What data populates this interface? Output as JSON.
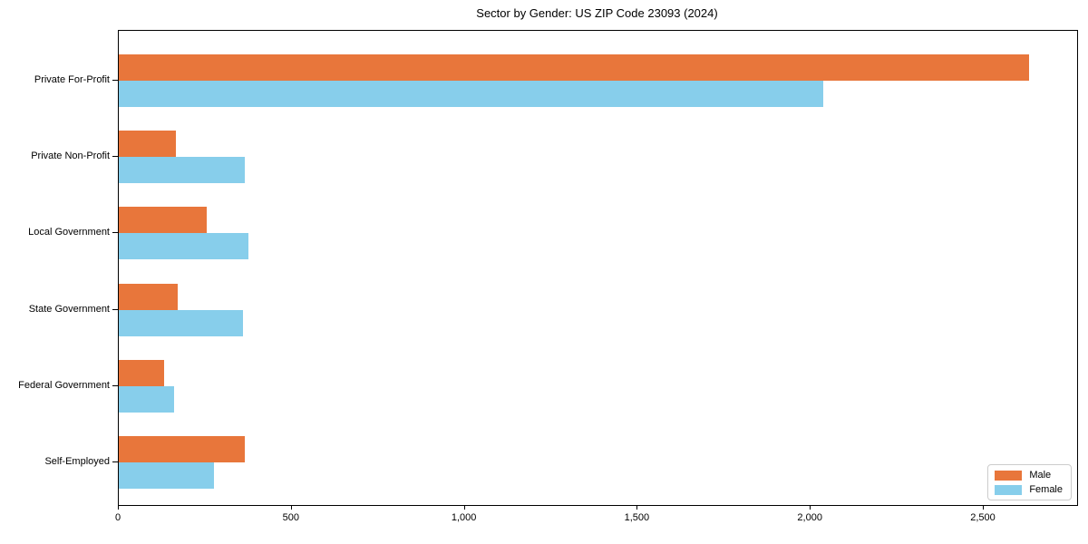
{
  "chart_data": {
    "type": "bar",
    "orientation": "horizontal",
    "title": "Sector by Gender: US ZIP Code 23093 (2024)",
    "categories": [
      "Private For-Profit",
      "Private Non-Profit",
      "Local Government",
      "State Government",
      "Federal Government",
      "Self-Employed"
    ],
    "series": [
      {
        "name": "Male",
        "color": "#e8763b",
        "values": [
          2630,
          165,
          255,
          170,
          130,
          365
        ]
      },
      {
        "name": "Female",
        "color": "#87ceeb",
        "values": [
          2035,
          365,
          375,
          360,
          160,
          275
        ]
      }
    ],
    "xlabel": "",
    "ylabel": "",
    "xlim": [
      0,
      2770
    ],
    "xticks": [
      0,
      500,
      1000,
      1500,
      2000,
      2500
    ],
    "xtick_labels": [
      "0",
      "500",
      "1,000",
      "1,500",
      "2,000",
      "2,500"
    ],
    "grid": false,
    "legend": {
      "position": "lower right"
    },
    "colors": {
      "axis": "#000000",
      "legend_border": "#cccccc",
      "background": "#ffffff"
    }
  }
}
